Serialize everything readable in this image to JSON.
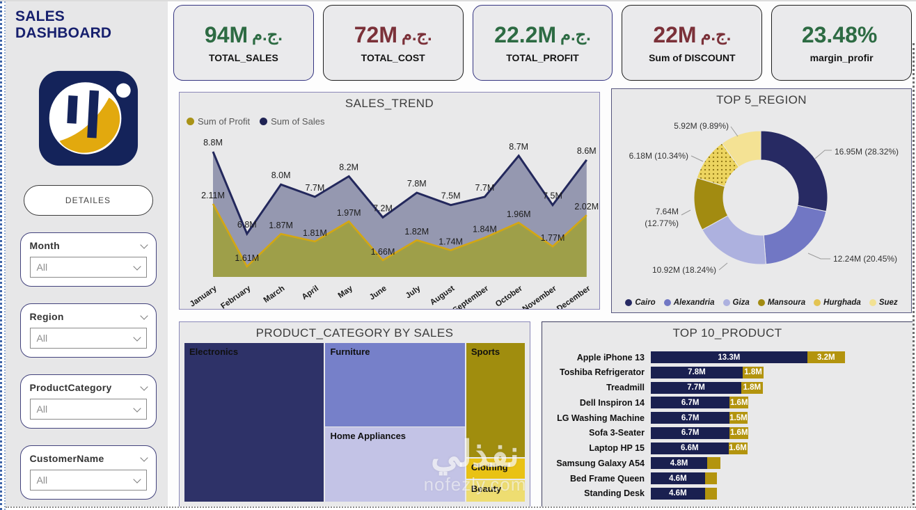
{
  "app": {
    "title": "SALES DASHBOARD",
    "details_button": "DETAILES",
    "watermark": {
      "arabic": "نفذلي",
      "domain": "nofezly.com"
    }
  },
  "filters": [
    {
      "label": "Month",
      "value": "All"
    },
    {
      "label": "Region",
      "value": "All"
    },
    {
      "label": "ProductCategory",
      "value": "All"
    },
    {
      "label": "CustomerName",
      "value": "All"
    }
  ],
  "kpis": [
    {
      "value": "94M",
      "currency": "ج.م.",
      "label": "TOTAL_SALES",
      "color": "#2d6b43",
      "border": "#343480"
    },
    {
      "value": "72M",
      "currency": "ج.م.",
      "label": "TOTAL_COST",
      "color": "#7b3139",
      "border": "#1c1c1c"
    },
    {
      "value": "22.2M",
      "currency": "ج.م.",
      "label": "TOTAL_PROFIT",
      "color": "#2d6b43",
      "border": "#343480"
    },
    {
      "value": "22M",
      "currency": "ج.م.",
      "label": "Sum of DISCOUNT",
      "color": "#7b3139",
      "border": "#1c1c1c"
    },
    {
      "value": "23.48%",
      "currency": "",
      "label": "margin_profir",
      "color": "#2d6b43",
      "border": "#1c1c1c"
    }
  ],
  "chart_data": [
    {
      "type": "area",
      "title": "SALES_TREND",
      "categories": [
        "January",
        "February",
        "March",
        "April",
        "May",
        "June",
        "July",
        "August",
        "September",
        "October",
        "November",
        "December"
      ],
      "series": [
        {
          "name": "Sum of Profit",
          "color": "#a99317",
          "line_color": "#d4a712",
          "fill": "#9b9c43",
          "values": [
            2.11,
            1.61,
            1.87,
            1.81,
            1.97,
            1.66,
            1.82,
            1.74,
            1.84,
            1.96,
            1.77,
            2.02
          ],
          "labels": [
            "2.11M",
            "1.61M",
            "1.87M",
            "1.81M",
            "1.97M",
            "1.66M",
            "1.82M",
            "1.74M",
            "1.84M",
            "1.96M",
            "1.77M",
            "2.02M"
          ]
        },
        {
          "name": "Sum of Sales",
          "color": "#1f2354",
          "line_color": "#23285c",
          "fill": "#9094ad",
          "values": [
            8.8,
            6.8,
            8.0,
            7.7,
            8.2,
            7.2,
            7.8,
            7.5,
            7.7,
            8.7,
            7.5,
            8.6
          ],
          "labels": [
            "8.8M",
            "6.8M",
            "8.0M",
            "7.7M",
            "8.2M",
            "7.2M",
            "7.8M",
            "7.5M",
            "7.7M",
            "8.7M",
            "7.5M",
            "8.6M"
          ]
        }
      ],
      "legend_position": "top-left",
      "grid": false
    },
    {
      "type": "pie",
      "title": "TOP 5_REGION",
      "slices": [
        {
          "name": "Cairo",
          "value": 16.95,
          "pct": 28.32,
          "label": "16.95M (28.32%)",
          "color": "#272a63",
          "legend_color": "#272a63"
        },
        {
          "name": "Alexandria",
          "value": 12.24,
          "pct": 20.45,
          "label": "12.24M (20.45%)",
          "color": "#7177c4",
          "legend_color": "#7177c4"
        },
        {
          "name": "Giza",
          "value": 10.92,
          "pct": 18.24,
          "label": "10.92M (18.24%)",
          "color": "#adb1df",
          "legend_color": "#adb1df"
        },
        {
          "name": "Mansoura",
          "value": 7.64,
          "pct": 12.77,
          "label": "7.64M (12.77%)",
          "color": "#a28b11",
          "legend_color": "#a28b11"
        },
        {
          "name": "Hurghada",
          "value": 6.18,
          "pct": 10.34,
          "label": "6.18M (10.34%)",
          "color": "#e8cf63",
          "legend_color": "#e3c453",
          "pattern": "dots"
        },
        {
          "name": "Suez",
          "value": 5.92,
          "pct": 9.89,
          "label": "5.92M (9.89%)",
          "color": "#f4e294",
          "legend_color": "#f2e193"
        }
      ],
      "legend_position": "bottom",
      "donut": true
    },
    {
      "type": "treemap",
      "title": "PRODUCT_CATEGORY BY SALES",
      "items": [
        {
          "name": "Electronics",
          "color": "#2e3268",
          "rect": {
            "l": 0,
            "t": 0,
            "w": 41.0,
            "h": 100
          }
        },
        {
          "name": "Furniture",
          "color": "#7680c9",
          "rect": {
            "l": 41.4,
            "t": 0,
            "w": 41.0,
            "h": 52.5
          }
        },
        {
          "name": "Home Appliances",
          "color": "#c3c3e6",
          "rect": {
            "l": 41.4,
            "t": 53,
            "w": 41.0,
            "h": 47
          }
        },
        {
          "name": "Sports",
          "color": "#a08d0e",
          "rect": {
            "l": 82.8,
            "t": 0,
            "w": 17.2,
            "h": 72
          }
        },
        {
          "name": "Clothing",
          "color": "#e9c214",
          "rect": {
            "l": 82.8,
            "t": 72.6,
            "w": 17.2,
            "h": 13
          }
        },
        {
          "name": "Beauty",
          "color": "#eedd71",
          "rect": {
            "l": 82.8,
            "t": 86.2,
            "w": 17.2,
            "h": 13.8
          }
        }
      ]
    },
    {
      "type": "bar",
      "title": "TOP 10_PRODUCT",
      "orientation": "horizontal-stacked",
      "colors": {
        "sales": "#1a2050",
        "profit": "#b3940e"
      },
      "xmax": 21.3,
      "products": [
        {
          "name": "Apple iPhone 13",
          "sales": 13.3,
          "profit": 3.2,
          "sales_label": "13.3M",
          "profit_label": "3.2M"
        },
        {
          "name": "Toshiba Refrigerator",
          "sales": 7.8,
          "profit": 1.8,
          "sales_label": "7.8M",
          "profit_label": "1.8M"
        },
        {
          "name": "Treadmill",
          "sales": 7.7,
          "profit": 1.8,
          "sales_label": "7.7M",
          "profit_label": "1.8M"
        },
        {
          "name": "Dell Inspiron 14",
          "sales": 6.7,
          "profit": 1.6,
          "sales_label": "6.7M",
          "profit_label": "1.6M"
        },
        {
          "name": "LG Washing Machine",
          "sales": 6.7,
          "profit": 1.5,
          "sales_label": "6.7M",
          "profit_label": "1.5M"
        },
        {
          "name": "Sofa 3-Seater",
          "sales": 6.7,
          "profit": 1.6,
          "sales_label": "6.7M",
          "profit_label": "1.6M"
        },
        {
          "name": "Laptop HP 15",
          "sales": 6.6,
          "profit": 1.6,
          "sales_label": "6.6M",
          "profit_label": "1.6M"
        },
        {
          "name": "Samsung Galaxy A54",
          "sales": 4.8,
          "profit": 1.1,
          "sales_label": "4.8M",
          "profit_label": ""
        },
        {
          "name": "Bed Frame Queen",
          "sales": 4.6,
          "profit": 1.0,
          "sales_label": "4.6M",
          "profit_label": ""
        },
        {
          "name": "Standing Desk",
          "sales": 4.6,
          "profit": 1.0,
          "sales_label": "4.6M",
          "profit_label": ""
        }
      ]
    }
  ]
}
